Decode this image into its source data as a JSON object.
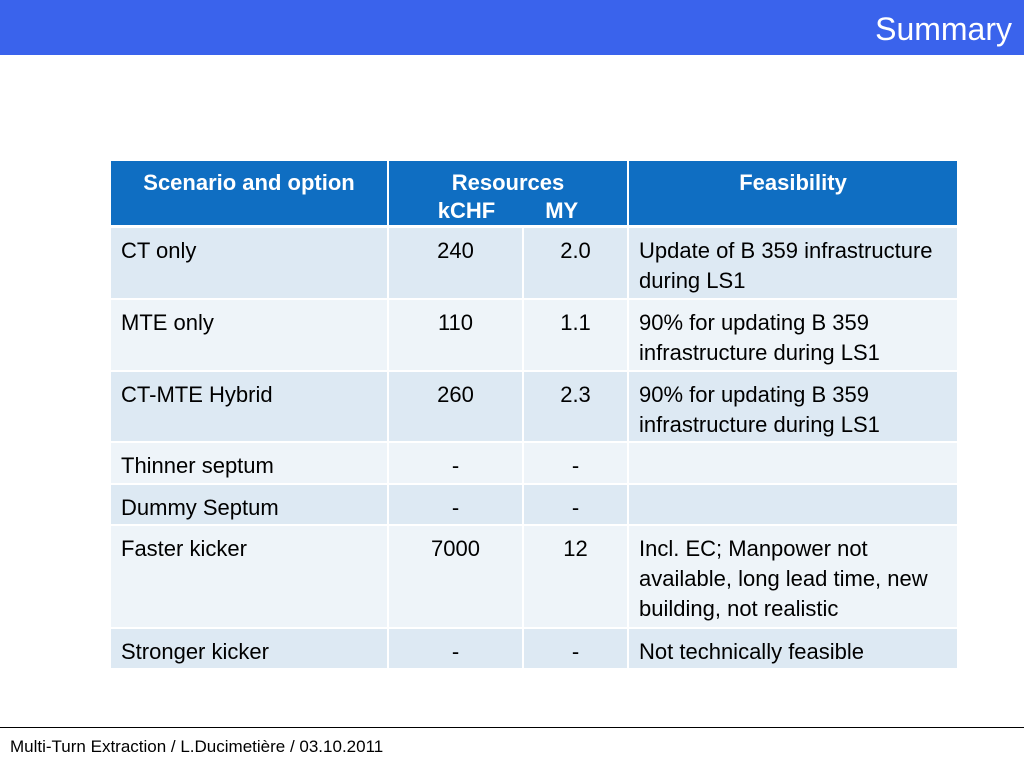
{
  "slide": {
    "title": "Summary",
    "footer": "Multi-Turn Extraction / L.Ducimetière / 03.10.2011"
  },
  "table": {
    "headers": {
      "scenario": "Scenario and option",
      "resources": "Resources",
      "kchf": "kCHF",
      "my": "MY",
      "feasibility": "Feasibility"
    },
    "rows": [
      {
        "scenario": "CT only",
        "kchf": "240",
        "my": "2.0",
        "feasibility": "Update of B 359 infrastructure during LS1"
      },
      {
        "scenario": "MTE only",
        "kchf": "110",
        "my": "1.1",
        "feasibility": "90% for updating B 359 infrastructure during LS1"
      },
      {
        "scenario": "CT-MTE Hybrid",
        "kchf": "260",
        "my": "2.3",
        "feasibility": "90% for updating B 359 infrastructure during LS1"
      },
      {
        "scenario": "Thinner septum",
        "kchf": "-",
        "my": "-",
        "feasibility": ""
      },
      {
        "scenario": "Dummy Septum",
        "kchf": "-",
        "my": "-",
        "feasibility": ""
      },
      {
        "scenario": "Faster kicker",
        "kchf": "7000",
        "my": "12",
        "feasibility": "Incl. EC; Manpower not available, long lead time, new building, not realistic"
      },
      {
        "scenario": "Stronger kicker",
        "kchf": "-",
        "my": "-",
        "feasibility": "Not technically feasible"
      }
    ]
  },
  "colors": {
    "title_bar": "#3a63ec",
    "header_fill": "#0f6ec2",
    "row_dark": "#dde9f3",
    "row_light": "#eef4f9"
  }
}
